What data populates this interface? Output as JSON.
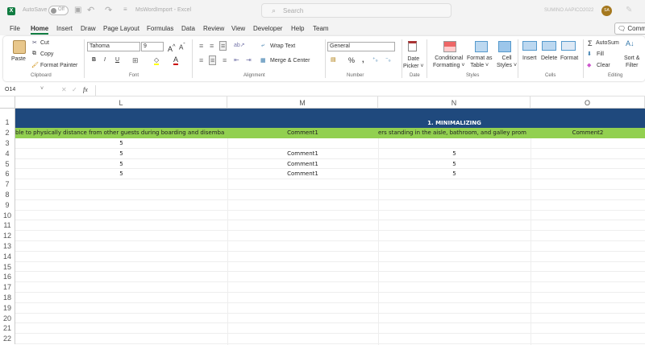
{
  "titlebar": {
    "autosave_label": "AutoSave",
    "autosave_state": "Off",
    "doc_title": "MsWordImport - Excel",
    "search_placeholder": "Search",
    "user_name": "SUMINO AAPICO2022",
    "user_initials": "SA"
  },
  "menu": {
    "items": [
      "File",
      "Home",
      "Insert",
      "Draw",
      "Page Layout",
      "Formulas",
      "Data",
      "Review",
      "View",
      "Developer",
      "Help",
      "Team"
    ],
    "active": "Home",
    "comments_label": "Comments"
  },
  "ribbon": {
    "clipboard": {
      "paste": "Paste",
      "cut": "Cut",
      "copy": "Copy",
      "format_painter": "Format Painter",
      "label": "Clipboard"
    },
    "font": {
      "name": "Tahoma",
      "size": "9",
      "bold": "B",
      "italic": "I",
      "underline": "U",
      "label": "Font"
    },
    "alignment": {
      "wrap_text": "Wrap Text",
      "merge_center": "Merge & Center",
      "label": "Alignment"
    },
    "number": {
      "format": "General",
      "label": "Number"
    },
    "date": {
      "date_picker_1": "Date",
      "date_picker_2": "Picker",
      "label": "Date"
    },
    "styles": {
      "cond_1": "Conditional",
      "cond_2": "Formatting",
      "fat_1": "Format as",
      "fat_2": "Table",
      "cell_1": "Cell",
      "cell_2": "Styles",
      "label": "Styles"
    },
    "cells": {
      "insert": "Insert",
      "delete": "Delete",
      "format": "Format",
      "label": "Cells"
    },
    "editing": {
      "autosum": "AutoSum",
      "fill": "Fill",
      "clear": "Clear",
      "sort_1": "Sort &",
      "sort_2": "Filter",
      "label": "Editing"
    }
  },
  "formula_bar": {
    "name_box": "O14",
    "fx": "fx",
    "value": ""
  },
  "sheet": {
    "columns": [
      "L",
      "M",
      "N",
      "O"
    ],
    "rows": [
      "1",
      "2",
      "3",
      "4",
      "5",
      "6",
      "7",
      "8",
      "9",
      "10",
      "11",
      "12",
      "13",
      "14",
      "15",
      "16",
      "17",
      "18",
      "19",
      "20",
      "21",
      "22"
    ],
    "row1_title": "1. MINIMALIZING",
    "row2": [
      "ble to physically distance from other guests during boarding and disemba",
      "Comment1",
      "ers standing in the aisle, bathroom, and galley prom",
      "Comment2"
    ],
    "data_rows": [
      [
        "5",
        "",
        "",
        ""
      ],
      [
        "5",
        "Comment1",
        "5",
        ""
      ],
      [
        "5",
        "Comment1",
        "5",
        ""
      ],
      [
        "5",
        "Comment1",
        "5",
        ""
      ]
    ],
    "colors": {
      "header_blue": "#1f497d",
      "header_green": "#92d050"
    }
  }
}
